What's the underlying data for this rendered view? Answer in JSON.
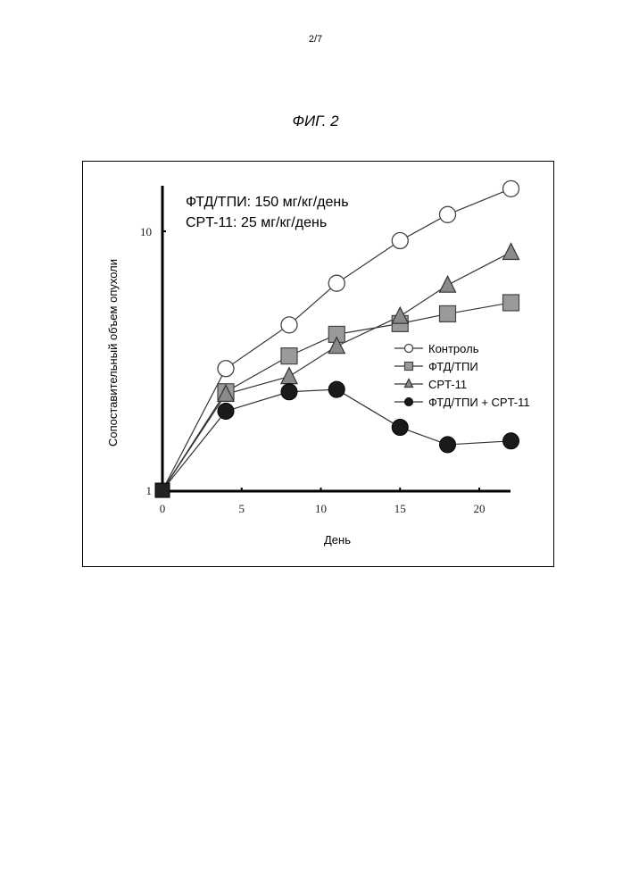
{
  "page": {
    "page_number": "2/7",
    "figure_title": "ФИГ. 2"
  },
  "chart_data": {
    "type": "line",
    "title": "",
    "xlabel": "День",
    "ylabel": "Сопоставительный объем опухоли",
    "y_scale": "log",
    "xlim": [
      0,
      22
    ],
    "ylim": [
      1,
      15
    ],
    "x_ticks": [
      0,
      5,
      10,
      15,
      20
    ],
    "y_ticks": [
      1,
      10
    ],
    "annotations": [
      "ФТД/ТПИ: 150 мг/кг/день",
      "CPT-11: 25 мг/кг/день"
    ],
    "legend_position": "center-right",
    "series": [
      {
        "name": "Контроль",
        "marker": "circle-open",
        "color": "#ffffff",
        "x": [
          0,
          4,
          8,
          11,
          15,
          18,
          22
        ],
        "y": [
          1,
          2.95,
          4.35,
          6.3,
          9.2,
          11.6,
          14.6
        ]
      },
      {
        "name": "ФТД/ТПИ",
        "marker": "square",
        "color": "#9a9a9a",
        "x": [
          0,
          4,
          8,
          11,
          15,
          18,
          22
        ],
        "y": [
          1,
          2.4,
          3.3,
          4.0,
          4.4,
          4.8,
          5.3
        ]
      },
      {
        "name": "CPT-11",
        "marker": "triangle",
        "color": "#8a8a8a",
        "x": [
          0,
          4,
          8,
          11,
          15,
          18,
          22
        ],
        "y": [
          1,
          2.35,
          2.75,
          3.6,
          4.7,
          6.2,
          8.3
        ]
      },
      {
        "name": "ФТД/ТПИ + CPT-11",
        "marker": "circle-filled",
        "color": "#1a1a1a",
        "x": [
          0,
          4,
          8,
          11,
          15,
          18,
          22
        ],
        "y": [
          1,
          2.02,
          2.4,
          2.45,
          1.75,
          1.5,
          1.55
        ]
      }
    ]
  }
}
